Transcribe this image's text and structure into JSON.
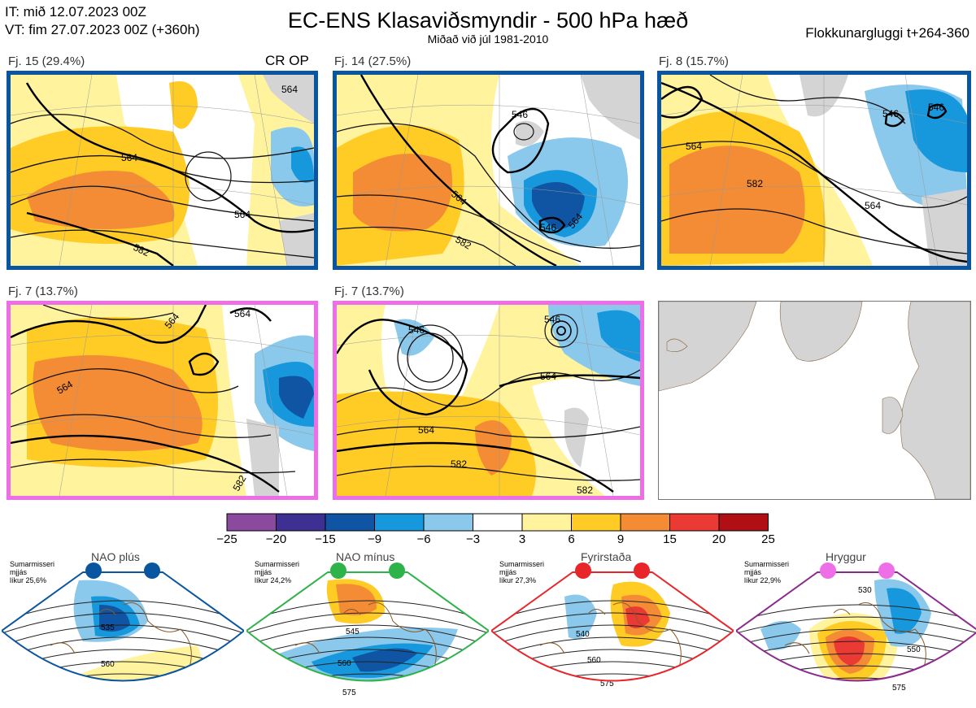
{
  "header": {
    "it_line": "IT: mið 12.07.2023 00Z",
    "vt_line": "VT: fim 27.07.2023 00Z  (+360h)",
    "title": "EC-ENS Klasaviðsmyndir - 500 hPa hæð",
    "subtitle": "Miðað við júl 1981-2010",
    "window": "Flokkunargluggi t+264-360"
  },
  "panels": [
    {
      "label": "Fj. 15 (29.4%)",
      "tag": "CR OP",
      "frame_color": "#0a55a0",
      "contours": [
        "564",
        "564",
        "582",
        "564"
      ]
    },
    {
      "label": "Fj. 14 (27.5%)",
      "frame_color": "#0a55a0",
      "contours": [
        "546",
        "564",
        "582",
        "546",
        "564"
      ]
    },
    {
      "label": "Fj. 8 (15.7%)",
      "frame_color": "#0a55a0",
      "contours": [
        "546",
        "546",
        "564",
        "582",
        "564"
      ]
    },
    {
      "label": "Fj. 7 (13.7%)",
      "frame_color": "#ee6ee8",
      "contours": [
        "564",
        "564",
        "564",
        "582"
      ]
    },
    {
      "label": "Fj. 7 (13.7%)",
      "frame_color": "#ee6ee8",
      "contours": [
        "546",
        "546",
        "564",
        "564",
        "582",
        "582"
      ]
    }
  ],
  "colorbar": {
    "ticks": [
      "−25",
      "−20",
      "−15",
      "−9",
      "−6",
      "−3",
      "3",
      "6",
      "9",
      "15",
      "20",
      "25"
    ],
    "colors": [
      "#8b4a9e",
      "#3e2f93",
      "#0f55a3",
      "#1797dc",
      "#8ac8ec",
      "#ffffff",
      "#fff39e",
      "#ffcb25",
      "#f48b35",
      "#ea3a33",
      "#b00f14"
    ]
  },
  "regimes": [
    {
      "name": "NAO plús",
      "season": "Sumarmisseri",
      "basis": "mjjás",
      "prob": "líkur 25,6%",
      "color": "#0a55a0",
      "frame_color": "#0a55a0",
      "contours": [
        "535",
        "560"
      ]
    },
    {
      "name": "NAO mínus",
      "season": "Sumarmisseri",
      "basis": "mjjás",
      "prob": "líkur 24,2%",
      "color": "#2db34a",
      "frame_color": "#2db34a",
      "contours": [
        "545",
        "560",
        "575"
      ]
    },
    {
      "name": "Fyrirstaða",
      "season": "Sumarmisseri",
      "basis": "mjjás",
      "prob": "líkur 27,3%",
      "color": "#e8262a",
      "frame_color": "#e8262a",
      "contours": [
        "540",
        "560",
        "575"
      ]
    },
    {
      "name": "Hryggur",
      "season": "Sumarmisseri",
      "basis": "mjjás",
      "prob": "líkur 22,9%",
      "color": "#ee6ee8",
      "frame_color": "#8b2a8e",
      "contours": [
        "530",
        "550",
        "575"
      ]
    }
  ]
}
